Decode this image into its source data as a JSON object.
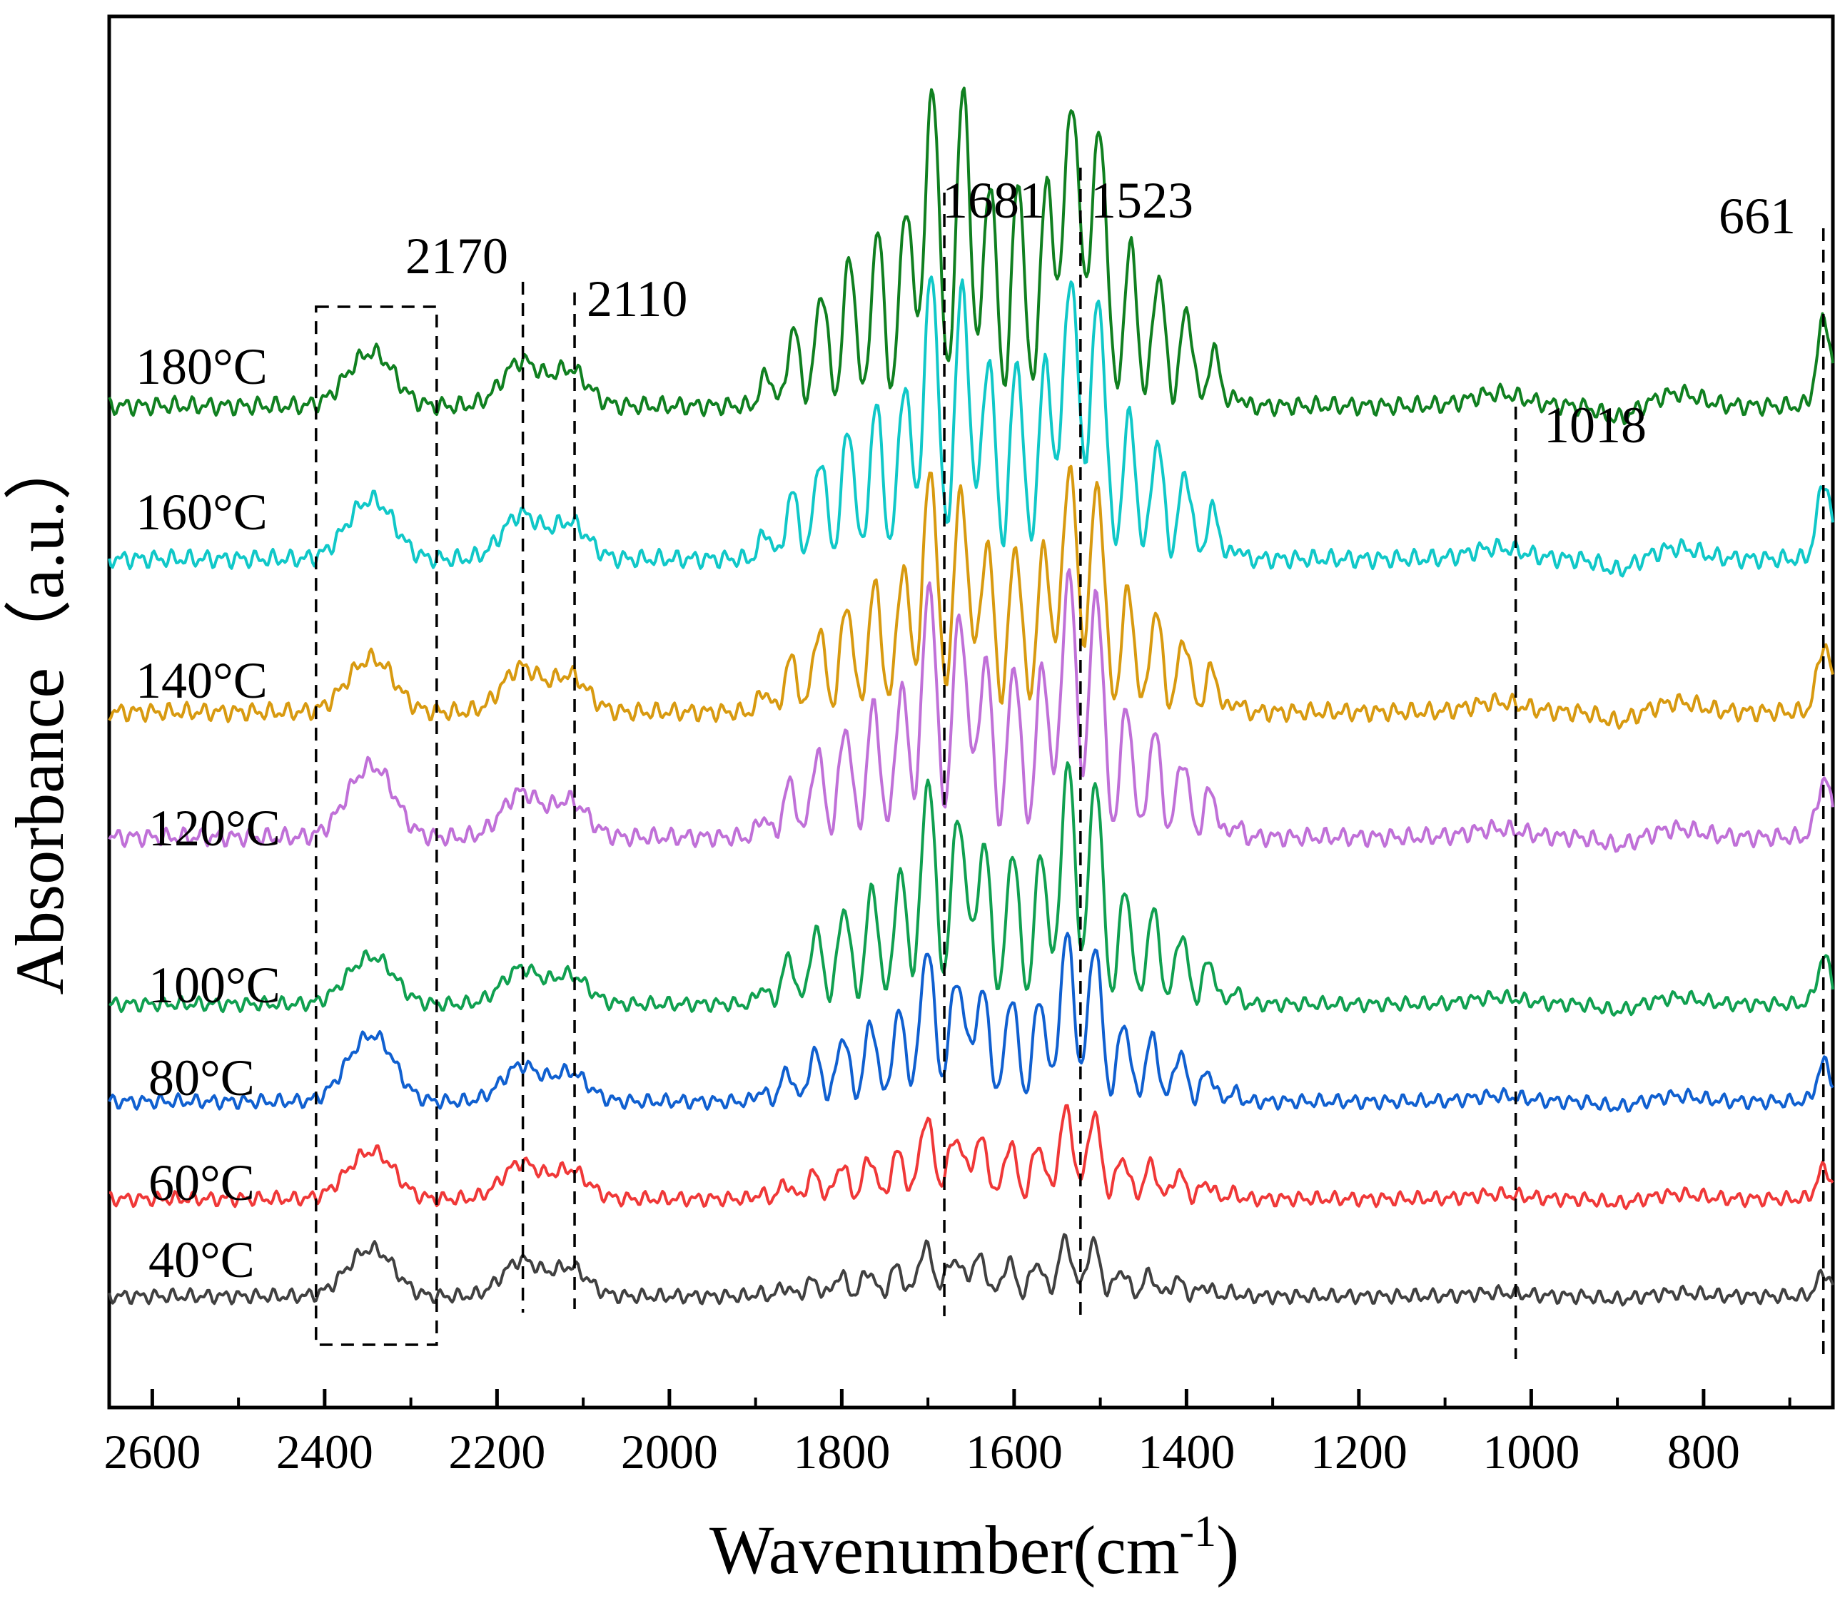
{
  "chart_data": {
    "type": "line",
    "title": "",
    "xlabel_main": "Wavenumber(cm",
    "xlabel_sup": "-1",
    "xlabel_close": ")",
    "ylabel": "Absorbance（a.u.）",
    "xlim": [
      2650,
      650
    ],
    "x_reversed": true,
    "x_ticks": [
      "2600",
      "2400",
      "2200",
      "2000",
      "1800",
      "1600",
      "1400",
      "1200",
      "1000",
      "800"
    ],
    "y_ticks": [],
    "grid": false,
    "series": [
      {
        "name": "40°C",
        "color": "#404040",
        "baseline": 0.08,
        "band": 0.12,
        "r": 1.0,
        "r2": 0.15
      },
      {
        "name": "60°C",
        "color": "#f03838",
        "baseline": 0.15,
        "band": 0.19,
        "r": 1.0,
        "r2": 0.2
      },
      {
        "name": "80°C",
        "color": "#1060d0",
        "baseline": 0.22,
        "band": 0.36,
        "r": 1.4,
        "r2": 0.25
      },
      {
        "name": "100°C",
        "color": "#10a050",
        "baseline": 0.29,
        "band": 0.53,
        "r": 1.0,
        "r2": 0.3
      },
      {
        "name": "120°C",
        "color": "#c070d8",
        "baseline": 0.41,
        "band": 0.48,
        "r": 1.2,
        "r2": 0.3
      },
      {
        "name": "140°C",
        "color": "#d89a10",
        "baseline": 0.5,
        "band": 0.46,
        "r": 0.9,
        "r2": 0.35
      },
      {
        "name": "160°C",
        "color": "#10c8c8",
        "baseline": 0.61,
        "band": 0.55,
        "r": 1.0,
        "r2": 0.4
      },
      {
        "name": "180°C",
        "color": "#108020",
        "baseline": 0.72,
        "band": 0.62,
        "r": 0.9,
        "r2": 0.45
      }
    ],
    "annotations": [
      {
        "label": "2170",
        "x": 2170
      },
      {
        "label": "2110",
        "x": 2110
      },
      {
        "label": "1681",
        "x": 1681
      },
      {
        "label": "1523",
        "x": 1523
      },
      {
        "label": "1018",
        "x": 1018
      },
      {
        "label": "661",
        "x": 661
      }
    ],
    "highlight_box": {
      "x_from": 2410,
      "x_to": 2270
    }
  }
}
